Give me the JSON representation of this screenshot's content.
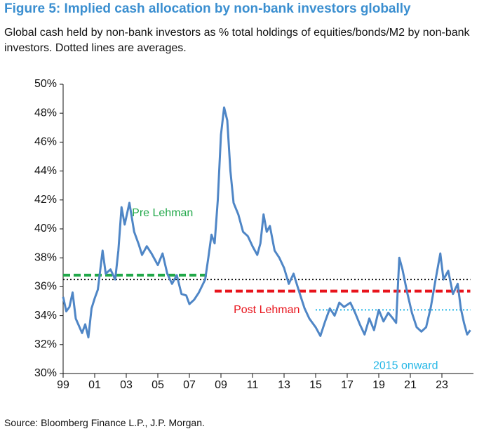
{
  "chart_data": {
    "type": "line",
    "title": "Figure 5: Implied cash allocation by non-bank investors globally",
    "subtitle": "Global cash held by non-bank investors as % total holdings of equities/bonds/M2 by non-bank investors. Dotted lines are averages.",
    "source": "Source: Bloomberg Finance L.P., J.P. Morgan.",
    "x": [
      1999.0,
      1999.2,
      1999.4,
      1999.6,
      1999.8,
      2000.0,
      2000.2,
      2000.4,
      2000.6,
      2000.8,
      2001.0,
      2001.2,
      2001.5,
      2001.7,
      2002.0,
      2002.3,
      2002.5,
      2002.7,
      2002.9,
      2003.2,
      2003.5,
      2003.8,
      2004.0,
      2004.3,
      2004.6,
      2005.0,
      2005.3,
      2005.6,
      2005.9,
      2006.2,
      2006.5,
      2006.8,
      2007.0,
      2007.3,
      2007.6,
      2008.0,
      2008.2,
      2008.4,
      2008.6,
      2008.8,
      2009.0,
      2009.2,
      2009.4,
      2009.6,
      2009.8,
      2010.1,
      2010.4,
      2010.7,
      2011.0,
      2011.3,
      2011.5,
      2011.7,
      2011.9,
      2012.1,
      2012.4,
      2012.7,
      2013.0,
      2013.3,
      2013.6,
      2014.0,
      2014.3,
      2014.6,
      2015.0,
      2015.3,
      2015.6,
      2015.9,
      2016.2,
      2016.5,
      2016.8,
      2017.2,
      2017.5,
      2017.8,
      2018.1,
      2018.4,
      2018.7,
      2019.0,
      2019.3,
      2019.6,
      2019.9,
      2020.1,
      2020.3,
      2020.5,
      2020.8,
      2021.1,
      2021.4,
      2021.7,
      2022.0,
      2022.3,
      2022.6,
      2022.9,
      2023.1,
      2023.4,
      2023.7,
      2024.0,
      2024.2,
      2024.4,
      2024.6,
      2024.8
    ],
    "series": [
      {
        "color": "#4f86c6",
        "values": [
          35.3,
          34.3,
          34.6,
          35.6,
          33.8,
          33.3,
          32.8,
          33.4,
          32.5,
          34.5,
          35.2,
          35.8,
          38.5,
          36.9,
          37.2,
          36.5,
          38.5,
          41.5,
          40.3,
          41.8,
          39.8,
          38.9,
          38.2,
          38.8,
          38.3,
          37.5,
          38.3,
          36.9,
          36.2,
          36.8,
          35.5,
          35.4,
          34.8,
          35.1,
          35.6,
          36.5,
          38.0,
          39.6,
          39.0,
          42.0,
          46.5,
          48.4,
          47.5,
          44.0,
          41.8,
          41.0,
          39.8,
          39.5,
          38.8,
          38.2,
          39.0,
          41.0,
          39.8,
          40.2,
          38.5,
          38.0,
          37.3,
          36.2,
          36.9,
          35.5,
          34.5,
          33.8,
          33.2,
          32.6,
          33.6,
          34.5,
          34.0,
          34.9,
          34.6,
          34.9,
          34.2,
          33.4,
          32.7,
          33.8,
          33.0,
          34.4,
          33.6,
          34.2,
          33.8,
          33.5,
          38.0,
          37.2,
          35.6,
          34.2,
          33.2,
          32.9,
          33.2,
          34.6,
          36.5,
          38.3,
          36.5,
          37.1,
          35.5,
          36.2,
          34.5,
          33.5,
          32.7,
          33.0
        ]
      }
    ],
    "reference_lines": [
      {
        "value": 36.5,
        "x": [
          1999,
          2024.8
        ],
        "color": "#111111",
        "style": "dotted"
      },
      {
        "label": "Pre Lehman",
        "value": 36.8,
        "x": [
          1999,
          2008.2
        ],
        "color": "#22a84a",
        "style": "dashed"
      },
      {
        "label": "Post Lehman",
        "value": 35.7,
        "x": [
          2008.6,
          2024.8
        ],
        "color": "#e8141c",
        "style": "dashed"
      },
      {
        "label": "2015 onward",
        "value": 34.4,
        "x": [
          2015.0,
          2024.8
        ],
        "color": "#25b7e6",
        "style": "dotted"
      }
    ],
    "xlim": [
      1999,
      2025
    ],
    "xticks": [
      {
        "value": 1999,
        "label": "99"
      },
      {
        "value": 2001,
        "label": "01"
      },
      {
        "value": 2003,
        "label": "03"
      },
      {
        "value": 2005,
        "label": "05"
      },
      {
        "value": 2007,
        "label": "07"
      },
      {
        "value": 2009,
        "label": "09"
      },
      {
        "value": 2011,
        "label": "11"
      },
      {
        "value": 2013,
        "label": "13"
      },
      {
        "value": 2015,
        "label": "15"
      },
      {
        "value": 2017,
        "label": "17"
      },
      {
        "value": 2019,
        "label": "19"
      },
      {
        "value": 2021,
        "label": "21"
      },
      {
        "value": 2023,
        "label": "23"
      }
    ],
    "ylim": [
      30,
      50
    ],
    "yticks": [
      {
        "value": 30,
        "label": "30%"
      },
      {
        "value": 32,
        "label": "32%"
      },
      {
        "value": 34,
        "label": "34%"
      },
      {
        "value": 36,
        "label": "36%"
      },
      {
        "value": 38,
        "label": "38%"
      },
      {
        "value": 40,
        "label": "40%"
      },
      {
        "value": 42,
        "label": "42%"
      },
      {
        "value": 44,
        "label": "44%"
      },
      {
        "value": 46,
        "label": "46%"
      },
      {
        "value": 48,
        "label": "48%"
      },
      {
        "value": 50,
        "label": "50%"
      }
    ],
    "grid": false
  }
}
